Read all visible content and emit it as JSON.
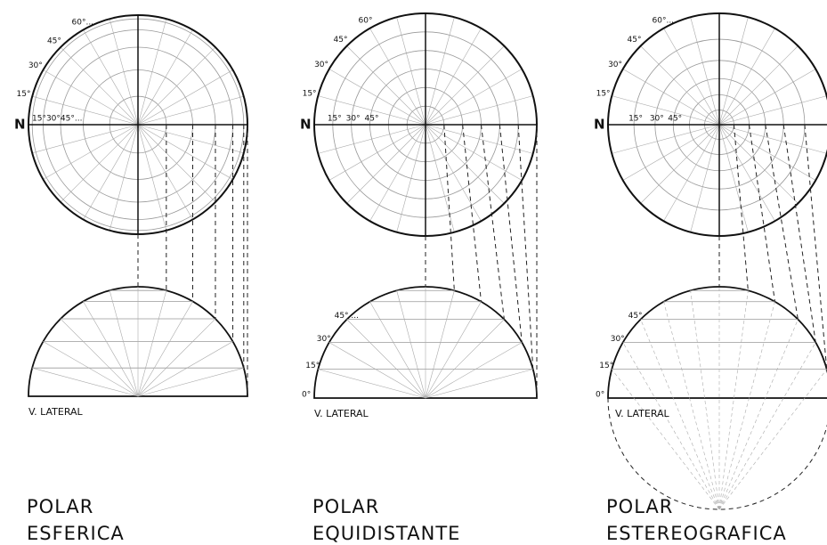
{
  "panels": [
    {
      "north": "N",
      "rim_labels": [
        "15°",
        "30°",
        "45°",
        "60°..."
      ],
      "axis_labels": [
        "15°30°45°..."
      ],
      "lateral_labels": [],
      "lateral_caption": "V. LATERAL",
      "title": [
        "POLAR",
        "ESFERICA"
      ]
    },
    {
      "north": "N",
      "rim_labels": [
        "15°",
        "30°",
        "45°",
        "60°"
      ],
      "axis_labels": [
        "15°",
        "30°",
        "45°"
      ],
      "lateral_labels": [
        "0°",
        "15°",
        "30°",
        "45° ..."
      ],
      "lateral_caption": "V. LATERAL",
      "title": [
        "POLAR",
        "EQUIDISTANTE"
      ]
    },
    {
      "north": "N",
      "rim_labels": [
        "15°",
        "30°",
        "45°",
        "60°..."
      ],
      "axis_labels": [
        "15°",
        "30°",
        "45°"
      ],
      "lateral_labels": [
        "0°",
        "15°",
        "30°",
        "45°"
      ],
      "lateral_caption": "V. LATERAL",
      "title": [
        "POLAR",
        "ESTEREOGRAFICA"
      ]
    }
  ]
}
